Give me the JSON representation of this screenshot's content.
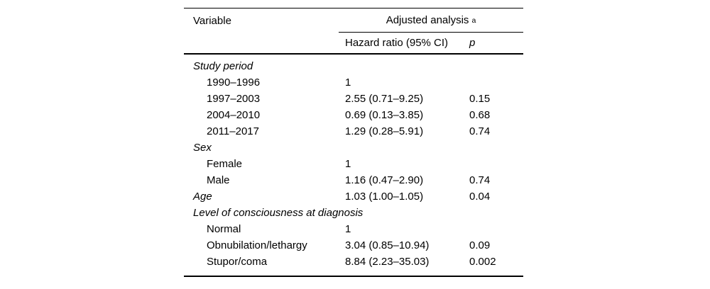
{
  "table": {
    "header": {
      "variable_label": "Variable",
      "group_label": "Adjusted analysis",
      "group_footnote_marker": "a",
      "col_hazard_ratio": "Hazard ratio (95% CI)",
      "col_p": "p"
    },
    "rows": [
      {
        "label": "Study period",
        "style": "section",
        "hazard_ratio": "",
        "p": ""
      },
      {
        "label": "1990–1996",
        "style": "item",
        "hazard_ratio": "1",
        "p": ""
      },
      {
        "label": "1997–2003",
        "style": "item",
        "hazard_ratio": "2.55 (0.71–9.25)",
        "p": "0.15"
      },
      {
        "label": "2004–2010",
        "style": "item",
        "hazard_ratio": "0.69 (0.13–3.85)",
        "p": "0.68"
      },
      {
        "label": "2011–2017",
        "style": "item",
        "hazard_ratio": "1.29 (0.28–5.91)",
        "p": "0.74"
      },
      {
        "label": "Sex",
        "style": "section",
        "hazard_ratio": "",
        "p": ""
      },
      {
        "label": "Female",
        "style": "item",
        "hazard_ratio": "1",
        "p": ""
      },
      {
        "label": "Male",
        "style": "item",
        "hazard_ratio": "1.16 (0.47–2.90)",
        "p": "0.74"
      },
      {
        "label": "Age",
        "style": "section",
        "hazard_ratio": "1.03 (1.00–1.05)",
        "p": "0.04"
      },
      {
        "label": "Level of consciousness at diagnosis",
        "style": "section",
        "hazard_ratio": "",
        "p": ""
      },
      {
        "label": "Normal",
        "style": "item",
        "hazard_ratio": "1",
        "p": ""
      },
      {
        "label": "Obnubilation/lethargy",
        "style": "item",
        "hazard_ratio": "3.04 (0.85–10.94)",
        "p": "0.09"
      },
      {
        "label": "Stupor/coma",
        "style": "item",
        "hazard_ratio": "8.84 (2.23–35.03)",
        "p": "0.002"
      }
    ]
  }
}
